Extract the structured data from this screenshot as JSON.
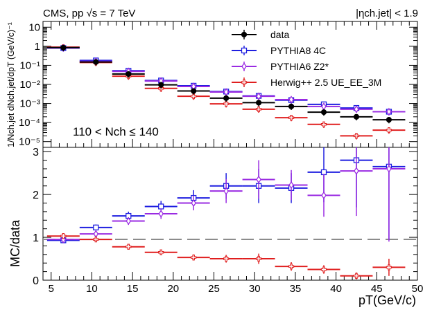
{
  "chart_data": [
    {
      "type": "scatter",
      "panel": "upper",
      "title_left": "CMS, pp √s = 7 TeV",
      "title_right": "|ηch.jet| < 1.9",
      "ylabel": "1/Nch.jet dNch.jet/dpT (GeV/c)⁻¹",
      "yscale": "log",
      "ylim": [
        5e-06,
        20
      ],
      "ytick_labels": [
        "10",
        "1",
        "10⁻¹",
        "10⁻²",
        "10⁻³",
        "10⁻⁴",
        "10⁻⁵"
      ],
      "annotation": "110 < Nch ≤ 140",
      "legend_position": "top-right",
      "x_bin_edges": [
        4.5,
        8.5,
        12.5,
        16.5,
        20.5,
        24.5,
        28.5,
        32.5,
        36.5,
        40.5,
        44.5,
        48.5
      ],
      "series": [
        {
          "name": "data",
          "color": "#000000",
          "marker": "filled-circle",
          "x": [
            6.5,
            10.5,
            14.5,
            18.5,
            22.5,
            26.5,
            30.5,
            34.5,
            38.5,
            42.5,
            46.5
          ],
          "values": [
            0.85,
            0.15,
            0.035,
            0.0095,
            0.0045,
            0.0019,
            0.0011,
            0.0007,
            0.00035,
            0.0002,
            0.00014
          ]
        },
        {
          "name": "PYTHIA8 4C",
          "color": "#1f1fe0",
          "marker": "open-square",
          "x": [
            6.5,
            10.5,
            14.5,
            18.5,
            22.5,
            26.5,
            30.5,
            34.5,
            38.5,
            42.5,
            46.5
          ],
          "values": [
            0.8,
            0.18,
            0.052,
            0.016,
            0.0085,
            0.0042,
            0.0025,
            0.0015,
            0.0009,
            0.00058,
            0.00037
          ]
        },
        {
          "name": "PYTHIA6 Z2*",
          "color": "#9a2be2",
          "marker": "open-diamond",
          "x": [
            6.5,
            10.5,
            14.5,
            18.5,
            22.5,
            26.5,
            30.5,
            34.5,
            38.5,
            42.5,
            46.5
          ],
          "values": [
            0.82,
            0.16,
            0.048,
            0.015,
            0.0078,
            0.004,
            0.0024,
            0.0016,
            0.0007,
            0.0005,
            0.00037
          ]
        },
        {
          "name": "Herwig++ 2.5  UE_EE_3M",
          "color": "#e01f1f",
          "marker": "open-cross",
          "x": [
            6.5,
            10.5,
            14.5,
            18.5,
            22.5,
            26.5,
            30.5,
            34.5,
            38.5,
            42.5,
            46.5
          ],
          "values": [
            0.9,
            0.14,
            0.027,
            0.0062,
            0.0024,
            0.00095,
            0.0005,
            0.00018,
            8e-05,
            2e-05,
            4e-05
          ]
        }
      ]
    },
    {
      "type": "scatter",
      "panel": "lower",
      "ylabel": "MC/data",
      "xlabel": "pT(GeV/c)",
      "ylim": [
        0,
        3.1
      ],
      "xlim": [
        4,
        50
      ],
      "ytick_labels": [
        "0",
        "1",
        "2",
        "3"
      ],
      "xtick_labels": [
        "5",
        "10",
        "15",
        "20",
        "25",
        "30",
        "35",
        "40",
        "45",
        "50"
      ],
      "reference_line": 1,
      "x_bin_edges": [
        4.5,
        8.5,
        12.5,
        16.5,
        20.5,
        24.5,
        28.5,
        32.5,
        36.5,
        40.5,
        44.5,
        48.5
      ],
      "series": [
        {
          "name": "PYTHIA8 4C",
          "color": "#1f1fe0",
          "marker": "open-square",
          "x": [
            6.5,
            10.5,
            14.5,
            18.5,
            22.5,
            26.5,
            30.5,
            34.5,
            38.5,
            42.5,
            46.5
          ],
          "values": [
            0.93,
            1.23,
            1.5,
            1.72,
            1.92,
            2.2,
            2.2,
            2.15,
            2.52,
            2.8,
            2.65
          ],
          "errors": [
            0.04,
            0.07,
            0.1,
            0.13,
            0.18,
            0.3,
            0.4,
            0.35,
            0.7,
            1.1,
            1.7
          ]
        },
        {
          "name": "PYTHIA6 Z2*",
          "color": "#9a2be2",
          "marker": "open-diamond",
          "x": [
            6.5,
            10.5,
            14.5,
            18.5,
            22.5,
            26.5,
            30.5,
            34.5,
            38.5,
            42.5,
            46.5
          ],
          "values": [
            0.95,
            1.08,
            1.38,
            1.55,
            1.8,
            2.08,
            2.35,
            2.22,
            1.98,
            2.55,
            2.6
          ],
          "errors": [
            0.04,
            0.06,
            0.09,
            0.12,
            0.17,
            0.28,
            0.45,
            0.35,
            0.5,
            1.05,
            1.7
          ]
        },
        {
          "name": "Herwig++ 2.5  UE_EE_3M",
          "color": "#e01f1f",
          "marker": "open-cross",
          "x": [
            6.5,
            10.5,
            14.5,
            18.5,
            22.5,
            26.5,
            30.5,
            34.5,
            38.5,
            42.5,
            46.5
          ],
          "values": [
            1.03,
            0.95,
            0.78,
            0.65,
            0.53,
            0.5,
            0.5,
            0.32,
            0.25,
            0.1,
            0.3
          ],
          "errors": [
            0.04,
            0.05,
            0.05,
            0.06,
            0.07,
            0.09,
            0.12,
            0.1,
            0.1,
            0.08,
            0.2
          ]
        }
      ]
    }
  ]
}
